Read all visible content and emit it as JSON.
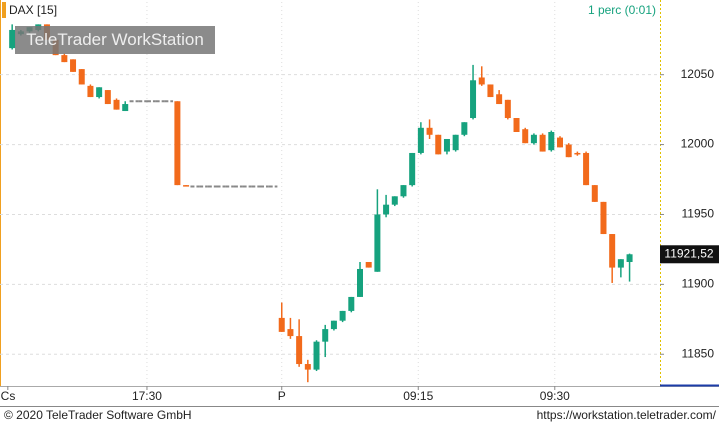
{
  "chart_data": {
    "type": "candlestick",
    "title": "DAX [15]",
    "subtitle": "1 perc (0:01)",
    "watermark": "TeleTrader WorkStation",
    "up_color": "#16a27e",
    "down_color": "#f26a1b",
    "flat_color": "#888888",
    "grid": true,
    "x": [
      0,
      1,
      2,
      3,
      4,
      5,
      6,
      7,
      8,
      9,
      10,
      11,
      12,
      13,
      14,
      15,
      16,
      17,
      18,
      19,
      20,
      21,
      22,
      23,
      24,
      25,
      26,
      27,
      28,
      29,
      30,
      31,
      32,
      33,
      34,
      35,
      36,
      37,
      38,
      39,
      40,
      41,
      42,
      43,
      44,
      45,
      46,
      47,
      48,
      49,
      50,
      51,
      52,
      53,
      54,
      55,
      56,
      57,
      58,
      59,
      60,
      61,
      62,
      63,
      64,
      65,
      66,
      67,
      68,
      69,
      70,
      71
    ],
    "open": [
      12069,
      12079,
      12081,
      12082,
      12086,
      12075,
      12064,
      12061,
      12054,
      12042,
      12034,
      12039,
      12032,
      12024,
      12031,
      12031,
      12031,
      12031,
      12031,
      12031,
      11971,
      11970,
      11970,
      11970,
      11970,
      11970,
      11970,
      11970,
      11970,
      11970,
      11970,
      11876,
      11868,
      11863,
      11843,
      11839,
      11859,
      11868,
      11874,
      11881,
      11891,
      11916,
      11909,
      11950,
      11957,
      11963,
      11971,
      11994,
      12012,
      12007,
      11995,
      11996,
      12007,
      12019,
      12048,
      12043,
      12036,
      12032,
      12019,
      12011,
      12001,
      12007,
      11996,
      12005,
      12000,
      11994,
      11994,
      11971,
      11959,
      11936,
      11912,
      11916
    ],
    "high": [
      12086,
      12082,
      12084,
      12086,
      12086,
      12075,
      12065,
      12061,
      12054,
      12043,
      12041,
      12039,
      12033,
      12031,
      12031,
      12031,
      12031,
      12031,
      12031,
      12031,
      11971,
      11970,
      11970,
      11970,
      11970,
      11970,
      11970,
      11970,
      11970,
      11970,
      11970,
      11887,
      11876,
      11875,
      11846,
      11860,
      11871,
      11874,
      11881,
      11891,
      11916,
      11916,
      11968,
      11964,
      11963,
      11971,
      11994,
      12016,
      12018,
      12007,
      12004,
      12007,
      12016,
      12057,
      12056,
      12043,
      12039,
      12032,
      12019,
      12012,
      12008,
      12008,
      12010,
      12006,
      12001,
      11995,
      11995,
      11971,
      11959,
      11936,
      11918,
      11922
    ],
    "low": [
      12068,
      12078,
      12080,
      12081,
      12075,
      12064,
      12059,
      12052,
      12043,
      12034,
      12033,
      12029,
      12025,
      12024,
      12031,
      12031,
      12031,
      12031,
      12031,
      11971,
      11970,
      11970,
      11970,
      11970,
      11970,
      11970,
      11970,
      11970,
      11970,
      11970,
      11970,
      11866,
      11861,
      11841,
      11830,
      11838,
      11848,
      11867,
      11873,
      11880,
      11891,
      11912,
      11909,
      11948,
      11956,
      11962,
      11970,
      11993,
      12004,
      11993,
      11993,
      11995,
      12006,
      12018,
      12042,
      12034,
      12029,
      12018,
      12009,
      12001,
      12000,
      11995,
      11995,
      11998,
      11991,
      11992,
      11971,
      11959,
      11936,
      11901,
      11905,
      11902
    ],
    "close": [
      12082,
      12081,
      12084,
      12086,
      12075,
      12064,
      12059,
      12052,
      12043,
      12034,
      12041,
      12029,
      12025,
      12029,
      12031,
      12031,
      12031,
      12031,
      12031,
      11971,
      11970,
      11970,
      11970,
      11970,
      11970,
      11970,
      11970,
      11970,
      11970,
      11970,
      11970,
      11866,
      11863,
      11843,
      11839,
      11859,
      11868,
      11874,
      11881,
      11891,
      11911,
      11912,
      11950,
      11957,
      11963,
      11971,
      11994,
      12012,
      12007,
      11993,
      12004,
      12007,
      12016,
      12046,
      12043,
      12034,
      12029,
      12019,
      12009,
      12001,
      12007,
      11995,
      12009,
      11998,
      11991,
      11993,
      11971,
      11959,
      11936,
      11912,
      11918,
      11921.52
    ],
    "last_price": {
      "value": 11921.52,
      "label": "11921,52"
    },
    "xlim": [
      -1.4,
      74.5
    ],
    "ylim": [
      11828,
      12102
    ],
    "xticks": [
      {
        "value": -0.5,
        "label": "Cs"
      },
      {
        "value": 15.5,
        "label": "17:30"
      },
      {
        "value": 31,
        "label": "P"
      },
      {
        "value": 46.7,
        "label": "09:15"
      },
      {
        "value": 62.4,
        "label": "09:30"
      }
    ],
    "yticks": [
      11850,
      11900,
      11950,
      12000,
      12050
    ]
  },
  "footer": {
    "copyright": "© 2020 TeleTrader Software GmbH",
    "url": "https://workstation.teletrader.com/"
  }
}
